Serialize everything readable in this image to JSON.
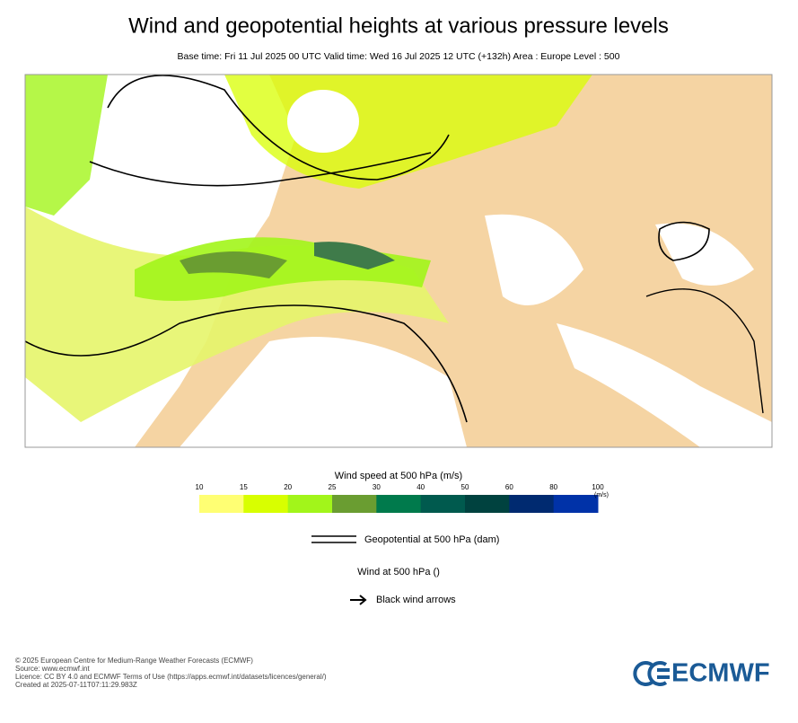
{
  "header": {
    "title": "Wind and geopotential heights at various pressure levels",
    "subtitle": "Base time: Fri 11 Jul 2025 00 UTC Valid time: Wed 16 Jul 2025 12 UTC (+132h) Area : Europe Level : 500"
  },
  "colorbar": {
    "title": "Wind speed at 500 hPa (m/s)",
    "unit": "(m/s)",
    "ticks": [
      10,
      15,
      20,
      25,
      30,
      40,
      50,
      60,
      80,
      100
    ],
    "colors": [
      "#ffff73",
      "#d8ff00",
      "#a2f51a",
      "#6a9d31",
      "#007a4c",
      "#005a4e",
      "#00423f",
      "#002a70",
      "#0032a8"
    ]
  },
  "legend": {
    "geopotential": "Geopotential at 500 hPa (dam)",
    "wind": "Wind at 500 hPa ()",
    "arrows": "Black wind arrows"
  },
  "footer": {
    "lines": [
      "© 2025 European Centre for Medium-Range Weather Forecasts (ECMWF)",
      "Source: www.ecmwf.int",
      "Licence: CC BY 4.0 and ECMWF Terms of Use (https://apps.ecmwf.int/datasets/licences/general/)",
      "Created at 2025-07-11T07:11:29.983Z"
    ],
    "logo": "ECMWF"
  }
}
